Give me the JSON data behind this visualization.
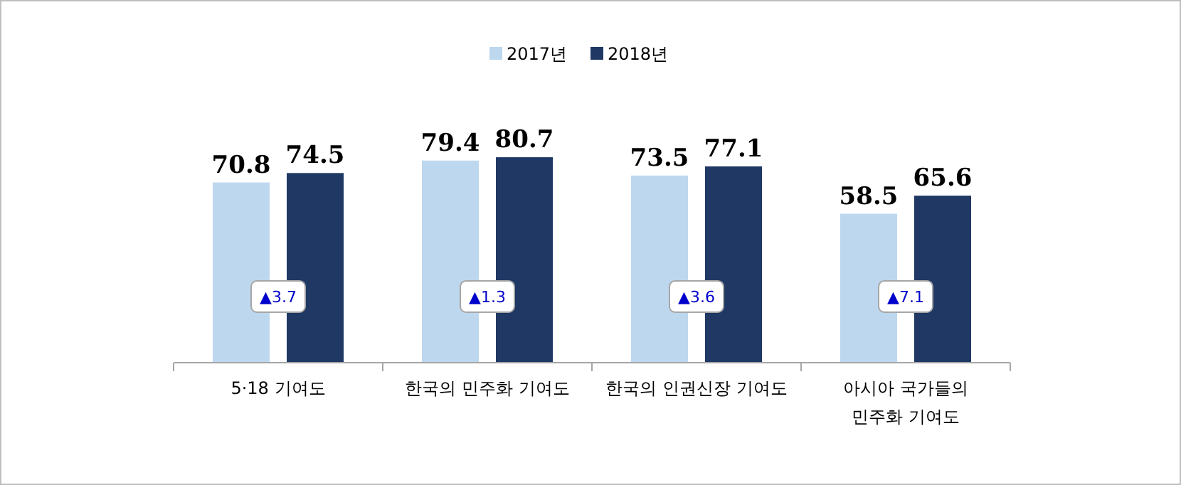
{
  "chart_data": {
    "type": "bar",
    "categories": [
      "5·18 기여도",
      "한국의 민주화 기여도",
      "한국의 인권신장 기여도",
      "아시아 국가들의\n민주화 기여도"
    ],
    "series": [
      {
        "name": "2017년",
        "color": "#bdd7ee",
        "values": [
          70.8,
          79.4,
          73.5,
          58.5
        ]
      },
      {
        "name": "2018년",
        "color": "#1f3864",
        "values": [
          74.5,
          80.7,
          77.1,
          65.6
        ]
      }
    ],
    "data_labels": true,
    "legend": "top",
    "annotations": [
      {
        "text": "▲3.7",
        "x": "5·18 기여도",
        "y": 26
      },
      {
        "text": "▲1.3",
        "x": "한국의 민주화 기여도",
        "y": 26
      },
      {
        "text": "▲3.6",
        "x": "한국의 인권신장 기여도",
        "y": 26
      },
      {
        "text": "▲7.1",
        "x": "아시아 국가들의\n민주화 기여도",
        "y": 26
      }
    ]
  }
}
